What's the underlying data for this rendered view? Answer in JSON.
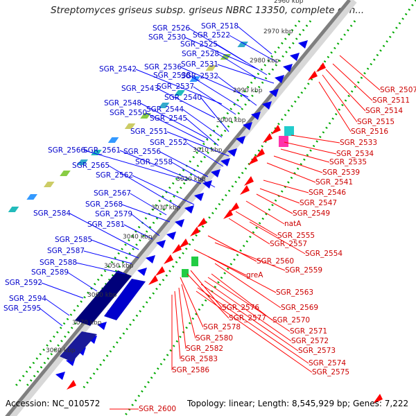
{
  "title": "Streptomyces griseus subsp. griseus NBRC 13350, complete gen...",
  "accession": "Accession: NC_010572",
  "topology": "Topology: linear; Length: 8,545,929 bp; Genes: 7,222",
  "scale_ticks": [
    "2960 kbp",
    "2970 kbp",
    "2980 kbp",
    "2990 kbp",
    "3000 kbp",
    "3010 kbp",
    "3020 kbp",
    "3030 kbp",
    "3040 kbp",
    "3050 kbp",
    "3060 kbp",
    "3070 kbp",
    "3080 kbp"
  ],
  "labels_forward": [
    "SGR_2526",
    "SGR_2518",
    "SGR_2530",
    "SGR_2522",
    "SGR_2525",
    "SGR_2528",
    "SGR_2531",
    "SGR_2536",
    "SGR_2542",
    "SGR_2538",
    "SGR_2532",
    "SGR_2543",
    "SGR_2537",
    "SGR_2540",
    "SGR_2548",
    "SGR_2544",
    "SGR_2550",
    "SGR_2545",
    "SGR_2551",
    "SGR_2552",
    "SGR_2566",
    "SGR_2561",
    "SGR_2556",
    "SGR_2558",
    "SGR_2565",
    "SGR_2562",
    "SGR_2567",
    "SGR_2568",
    "SGR_2584",
    "SGR_2579",
    "SGR_2581",
    "SGR_2585",
    "SGR_2587",
    "SGR_2588",
    "SGR_2589",
    "SGR_2592",
    "SGR_2594",
    "SGR_2595"
  ],
  "labels_reverse": [
    "SGR_2507",
    "SGR_2511",
    "SGR_2514",
    "SGR_2515",
    "SGR_2516",
    "SGR_2533",
    "SGR_2534",
    "SGR_2535",
    "SGR_2539",
    "SGR_2541",
    "SGR_2546",
    "SGR_2547",
    "SGR_2549",
    "natA",
    "SGR_2555",
    "SGR_2557",
    "SGR_2554",
    "SGR_2560",
    "SGR_2559",
    "greA",
    "SGR_2563",
    "SGR_2569",
    "SGR_2576",
    "SGR_2577",
    "SGR_2570",
    "SGR_2571",
    "SGR_2578",
    "SGR_2572",
    "SGR_2580",
    "SGR_2573",
    "SGR_2582",
    "SGR_2574",
    "SGR_2583",
    "SGR_2575",
    "SGR_2586",
    "SGR_2600"
  ],
  "colors": {
    "forward": "#0000ff",
    "reverse": "#ff0000",
    "forward_label": "#0000cc",
    "reverse_label": "#cc0000",
    "backbone": "#7f7f7f",
    "dots": "#009900"
  }
}
